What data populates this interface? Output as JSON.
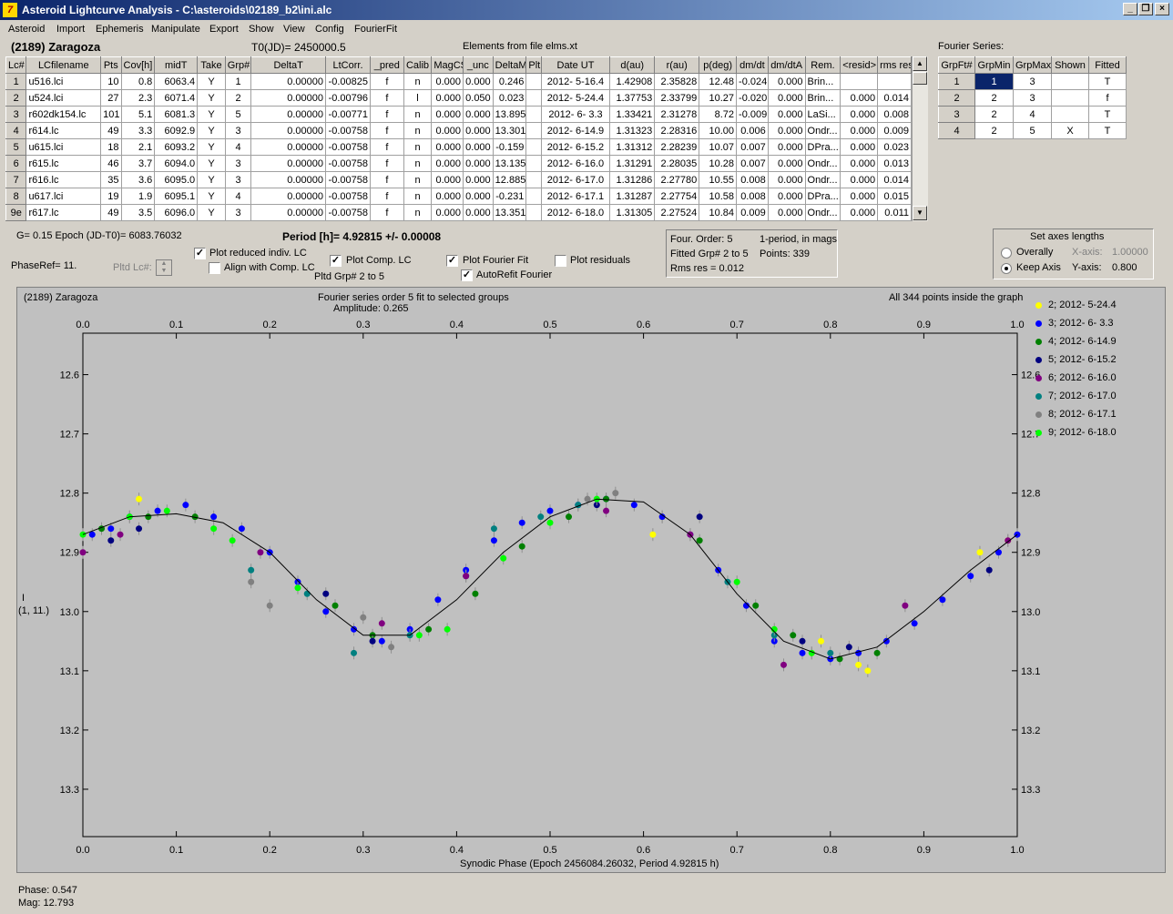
{
  "window": {
    "title": "Asteroid Lightcurve Analysis - C:\\asteroids\\02189_b2\\ini.alc"
  },
  "menu": [
    "Asteroid",
    "Import",
    "Ephemeris",
    "Manipulate",
    "Export",
    "Show",
    "View",
    "Config",
    "FourierFit"
  ],
  "header": {
    "asteroid": "(2189) Zaragoza",
    "t0": "T0(JD)= 2450000.5",
    "elements": "Elements from file elms.xt"
  },
  "lc_table": {
    "columns": [
      "Lc#",
      "LCfilename",
      "Pts",
      "Cov[h]",
      "midT",
      "Take",
      "Grp#",
      "DeltaT",
      "LtCorr.",
      "_pred",
      "Calib",
      "MagCS",
      "_unc",
      "DeltaM",
      "Plt",
      "Date UT",
      "d(au)",
      "r(au)",
      "p(deg)",
      "dm/dt",
      "dm/dtA",
      "Rem.",
      "<resid>",
      "rms res"
    ],
    "rows": [
      [
        "1",
        "u516.lci",
        "10",
        "0.8",
        "6063.4",
        "Y",
        "1",
        "0.00000",
        "-0.00825",
        "f",
        "n",
        "0.000",
        "0.000",
        "0.246",
        "",
        "2012- 5-16.4",
        "1.42908",
        "2.35828",
        "12.48",
        "-0.024",
        "0.000",
        "Brin...",
        "",
        ""
      ],
      [
        "2",
        "u524.lci",
        "27",
        "2.3",
        "6071.4",
        "Y",
        "2",
        "0.00000",
        "-0.00796",
        "f",
        "l",
        "0.000",
        "0.050",
        "0.023",
        "",
        "2012- 5-24.4",
        "1.37753",
        "2.33799",
        "10.27",
        "-0.020",
        "0.000",
        "Brin...",
        "0.000",
        "0.014"
      ],
      [
        "3",
        "r602dk154.lc",
        "101",
        "5.1",
        "6081.3",
        "Y",
        "5",
        "0.00000",
        "-0.00771",
        "f",
        "n",
        "0.000",
        "0.000",
        "13.895",
        "",
        "2012- 6- 3.3",
        "1.33421",
        "2.31278",
        "8.72",
        "-0.009",
        "0.000",
        "LaSi...",
        "0.000",
        "0.008"
      ],
      [
        "4",
        "r614.lc",
        "49",
        "3.3",
        "6092.9",
        "Y",
        "3",
        "0.00000",
        "-0.00758",
        "f",
        "n",
        "0.000",
        "0.000",
        "13.301",
        "",
        "2012- 6-14.9",
        "1.31323",
        "2.28316",
        "10.00",
        "0.006",
        "0.000",
        "Ondr...",
        "0.000",
        "0.009"
      ],
      [
        "5",
        "u615.lci",
        "18",
        "2.1",
        "6093.2",
        "Y",
        "4",
        "0.00000",
        "-0.00758",
        "f",
        "n",
        "0.000",
        "0.000",
        "-0.159",
        "",
        "2012- 6-15.2",
        "1.31312",
        "2.28239",
        "10.07",
        "0.007",
        "0.000",
        "DPra...",
        "0.000",
        "0.023"
      ],
      [
        "6",
        "r615.lc",
        "46",
        "3.7",
        "6094.0",
        "Y",
        "3",
        "0.00000",
        "-0.00758",
        "f",
        "n",
        "0.000",
        "0.000",
        "13.135",
        "",
        "2012- 6-16.0",
        "1.31291",
        "2.28035",
        "10.28",
        "0.007",
        "0.000",
        "Ondr...",
        "0.000",
        "0.013"
      ],
      [
        "7",
        "r616.lc",
        "35",
        "3.6",
        "6095.0",
        "Y",
        "3",
        "0.00000",
        "-0.00758",
        "f",
        "n",
        "0.000",
        "0.000",
        "12.885",
        "",
        "2012- 6-17.0",
        "1.31286",
        "2.27780",
        "10.55",
        "0.008",
        "0.000",
        "Ondr...",
        "0.000",
        "0.014"
      ],
      [
        "8",
        "u617.lci",
        "19",
        "1.9",
        "6095.1",
        "Y",
        "4",
        "0.00000",
        "-0.00758",
        "f",
        "n",
        "0.000",
        "0.000",
        "-0.231",
        "",
        "2012- 6-17.1",
        "1.31287",
        "2.27754",
        "10.58",
        "0.008",
        "0.000",
        "DPra...",
        "0.000",
        "0.015"
      ],
      [
        "9e",
        "r617.lc",
        "49",
        "3.5",
        "6096.0",
        "Y",
        "3",
        "0.00000",
        "-0.00758",
        "f",
        "n",
        "0.000",
        "0.000",
        "13.351",
        "",
        "2012- 6-18.0",
        "1.31305",
        "2.27524",
        "10.84",
        "0.009",
        "0.000",
        "Ondr...",
        "0.000",
        "0.011"
      ]
    ]
  },
  "fourier_series": {
    "title": "Fourier Series:",
    "columns": [
      "GrpFt#",
      "GrpMin",
      "GrpMax",
      "Shown",
      "Fitted"
    ],
    "rows": [
      [
        "1",
        "1",
        "3",
        "",
        "T"
      ],
      [
        "2",
        "2",
        "3",
        "",
        "f"
      ],
      [
        "3",
        "2",
        "4",
        "",
        "T"
      ],
      [
        "4",
        "2",
        "5",
        "X",
        "T"
      ]
    ]
  },
  "controls": {
    "g_epoch": "G= 0.15   Epoch (JD-T0)= 6083.76032",
    "period": "Period [h]= 4.92815 +/- 0.00008",
    "phaseref": "PhaseRef= 11.",
    "pltd_lc": "Pltd Lc#:",
    "plot_reduced": "Plot reduced indiv. LC",
    "align_comp": "Align with Comp. LC",
    "plot_comp": "Plot Comp. LC",
    "pltd_grp": "Pltd Grp#  2   to   5",
    "plot_fourier": "Plot Fourier Fit",
    "autorefit": "AutoRefit Fourier",
    "plot_residuals": "Plot residuals",
    "fit_info": {
      "line1a": "Four. Order:  5",
      "line1b": "1-period, in mags",
      "line2a": "Fitted Grp# 2 to 5",
      "line2b": "Points: 339",
      "line3": "Rms res      = 0.012"
    },
    "axes": {
      "title": "Set axes lengths",
      "overally": "Overally",
      "keep": "Keep Axis",
      "xaxis_label": "X-axis:",
      "xaxis_value": "1.00000",
      "yaxis_label": "Y-axis:",
      "yaxis_value": "0.800"
    }
  },
  "plot": {
    "left_title": "(2189) Zaragoza",
    "center_title": "Fourier series order 5 fit to selected groups",
    "amplitude": "Amplitude: 0.265",
    "right_title": "All 344 points inside the graph",
    "ylabel": "I",
    "ylabel2": "(1, 11.)",
    "xlabel": "Synodic Phase (Epoch 2456084.26032, Period 4.92815 h)",
    "x_ticks": [
      "0.0",
      "0.1",
      "0.2",
      "0.3",
      "0.4",
      "0.5",
      "0.6",
      "0.7",
      "0.8",
      "0.9",
      "1.0"
    ],
    "y_ticks": [
      "12.6",
      "12.7",
      "12.8",
      "12.9",
      "13.0",
      "13.1",
      "13.2",
      "13.3"
    ],
    "legend": [
      {
        "label": "2; 2012- 5-24.4",
        "color": "#ffff00"
      },
      {
        "label": "3; 2012- 6- 3.3",
        "color": "#0000ff"
      },
      {
        "label": "4; 2012- 6-14.9",
        "color": "#008000"
      },
      {
        "label": "5; 2012- 6-15.2",
        "color": "#000080"
      },
      {
        "label": "6; 2012- 6-16.0",
        "color": "#800080"
      },
      {
        "label": "7; 2012- 6-17.0",
        "color": "#008080"
      },
      {
        "label": "8; 2012- 6-17.1",
        "color": "#808080"
      },
      {
        "label": "9; 2012- 6-18.0",
        "color": "#00ff00"
      }
    ]
  },
  "chart_data": {
    "type": "scatter",
    "xlabel": "Synodic Phase (Epoch 2456084.26032, Period 4.92815 h)",
    "ylabel": "I",
    "xlim": [
      0.0,
      1.0
    ],
    "ylim": [
      13.38,
      12.53
    ],
    "fit_curve": {
      "x": [
        0.0,
        0.05,
        0.1,
        0.15,
        0.2,
        0.25,
        0.3,
        0.35,
        0.4,
        0.45,
        0.5,
        0.55,
        0.6,
        0.65,
        0.7,
        0.75,
        0.8,
        0.85,
        0.9,
        0.95,
        1.0
      ],
      "y": [
        12.87,
        12.84,
        12.835,
        12.85,
        12.9,
        12.98,
        13.04,
        13.04,
        12.98,
        12.9,
        12.84,
        12.81,
        12.815,
        12.87,
        12.97,
        13.05,
        13.08,
        13.06,
        13.0,
        12.93,
        12.87
      ]
    },
    "series": [
      {
        "name": "2; 2012- 5-24.4",
        "x": [
          0.06,
          0.61,
          0.62,
          0.78,
          0.79,
          0.84,
          0.83,
          0.96,
          0.99
        ],
        "y": [
          12.81,
          12.87,
          12.84,
          13.07,
          13.05,
          13.1,
          13.09,
          12.9,
          12.88
        ]
      },
      {
        "name": "3; 2012- 6- 3.3",
        "x": [
          0.01,
          0.03,
          0.05,
          0.08,
          0.11,
          0.14,
          0.17,
          0.2,
          0.23,
          0.26,
          0.29,
          0.32,
          0.35,
          0.38,
          0.41,
          0.44,
          0.47,
          0.5,
          0.53,
          0.56,
          0.59,
          0.62,
          0.65,
          0.68,
          0.71,
          0.74,
          0.77,
          0.8,
          0.83,
          0.86,
          0.89,
          0.92,
          0.95,
          0.98,
          1.0
        ],
        "y": [
          12.87,
          12.86,
          12.84,
          12.83,
          12.82,
          12.84,
          12.86,
          12.9,
          12.95,
          13.0,
          13.03,
          13.05,
          13.03,
          12.98,
          12.93,
          12.88,
          12.85,
          12.83,
          12.82,
          12.81,
          12.82,
          12.84,
          12.87,
          12.93,
          12.99,
          13.05,
          13.07,
          13.08,
          13.07,
          13.05,
          13.02,
          12.98,
          12.94,
          12.9,
          12.87
        ]
      },
      {
        "name": "4; 2012- 6-14.9",
        "x": [
          0.02,
          0.07,
          0.12,
          0.27,
          0.31,
          0.37,
          0.42,
          0.47,
          0.52,
          0.56,
          0.66,
          0.72,
          0.76,
          0.81,
          0.85
        ],
        "y": [
          12.86,
          12.84,
          12.84,
          12.99,
          13.04,
          13.03,
          12.97,
          12.89,
          12.84,
          12.81,
          12.88,
          12.99,
          13.04,
          13.08,
          13.07
        ]
      },
      {
        "name": "5; 2012- 6-15.2",
        "x": [
          0.03,
          0.06,
          0.26,
          0.31,
          0.41,
          0.55,
          0.66,
          0.77,
          0.82,
          0.97
        ],
        "y": [
          12.88,
          12.86,
          12.97,
          13.05,
          12.94,
          12.82,
          12.84,
          13.05,
          13.06,
          12.93
        ]
      },
      {
        "name": "6; 2012- 6-16.0",
        "x": [
          0.0,
          0.04,
          0.19,
          0.32,
          0.41,
          0.56,
          0.65,
          0.75,
          0.88,
          0.99
        ],
        "y": [
          12.9,
          12.87,
          12.9,
          13.02,
          12.94,
          12.83,
          12.87,
          13.09,
          12.99,
          12.88
        ]
      },
      {
        "name": "7; 2012- 6-17.0",
        "x": [
          0.18,
          0.24,
          0.29,
          0.35,
          0.44,
          0.49,
          0.53,
          0.69,
          0.74,
          0.8
        ],
        "y": [
          12.93,
          12.97,
          13.07,
          13.04,
          12.86,
          12.84,
          12.82,
          12.95,
          13.04,
          13.07
        ]
      },
      {
        "name": "8; 2012- 6-17.1",
        "x": [
          0.18,
          0.2,
          0.3,
          0.33,
          0.54,
          0.57
        ],
        "y": [
          12.95,
          12.99,
          13.01,
          13.06,
          12.81,
          12.8
        ]
      },
      {
        "name": "9; 2012- 6-18.0",
        "x": [
          0.0,
          0.05,
          0.09,
          0.14,
          0.16,
          0.23,
          0.36,
          0.39,
          0.45,
          0.5,
          0.55,
          0.7,
          0.74,
          0.78
        ],
        "y": [
          12.87,
          12.84,
          12.83,
          12.86,
          12.88,
          12.96,
          13.04,
          13.03,
          12.91,
          12.85,
          12.81,
          12.95,
          13.03,
          13.07
        ]
      }
    ]
  },
  "status": {
    "phase": "Phase:  0.547",
    "mag": "Mag:    12.793"
  }
}
